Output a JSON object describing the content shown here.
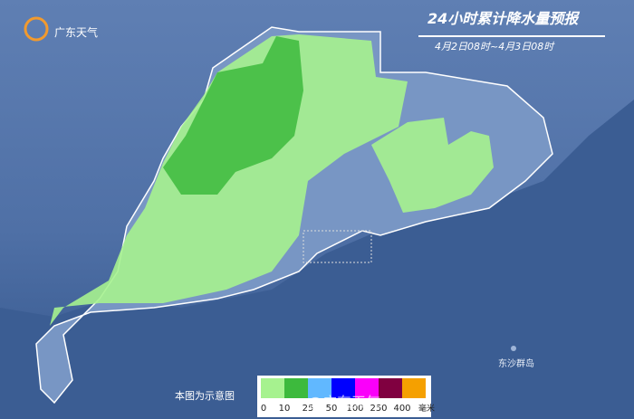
{
  "header": {
    "logo": "广东天气",
    "title": "24小时累计降水量预报",
    "subtitle": "4月2日08时~4月3日08时"
  },
  "map": {
    "island_label": "东沙群岛",
    "note": "本图为示意图",
    "watermark": "@广东天气"
  },
  "legend": {
    "colors": [
      "#a6f28f",
      "#3dba3d",
      "#61b8ff",
      "#0000fe",
      "#fa00fa",
      "#800040",
      "#f5a000"
    ],
    "labels": [
      "0",
      "10",
      "25",
      "50",
      "100",
      "250",
      "400"
    ],
    "unit": "毫米"
  }
}
